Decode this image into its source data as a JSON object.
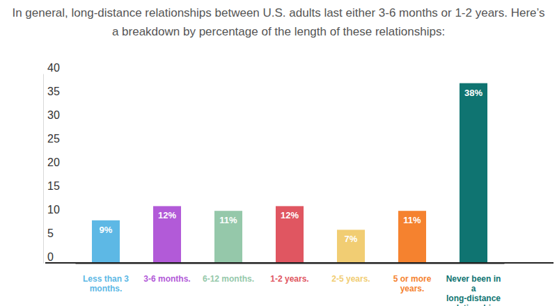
{
  "chart_data": {
    "type": "bar",
    "title": "In general, long-distance relationships between U.S. adults last either 3-6 months or 1-2 years. Here’s a breakdown by percentage of the length of these relationships:",
    "categories": [
      "Less than 3 months.",
      "3-6 months.",
      "6-12 months.",
      "1-2 years.",
      "2-5 years.",
      "5 or more years.",
      "Never been in a long-distance relationship."
    ],
    "values": [
      9,
      12,
      11,
      12,
      7,
      11,
      38
    ],
    "value_labels": [
      "9%",
      "12%",
      "11%",
      "12%",
      "7%",
      "11%",
      "38%"
    ],
    "colors": [
      "#5db8e5",
      "#b25ad8",
      "#95c8aa",
      "#e05661",
      "#f1cd73",
      "#f5822f",
      "#0f7471"
    ],
    "ylim": [
      0,
      40
    ],
    "yticks": [
      0,
      5,
      10,
      15,
      20,
      25,
      30,
      35,
      40
    ],
    "grid": false,
    "data_labels": true
  }
}
